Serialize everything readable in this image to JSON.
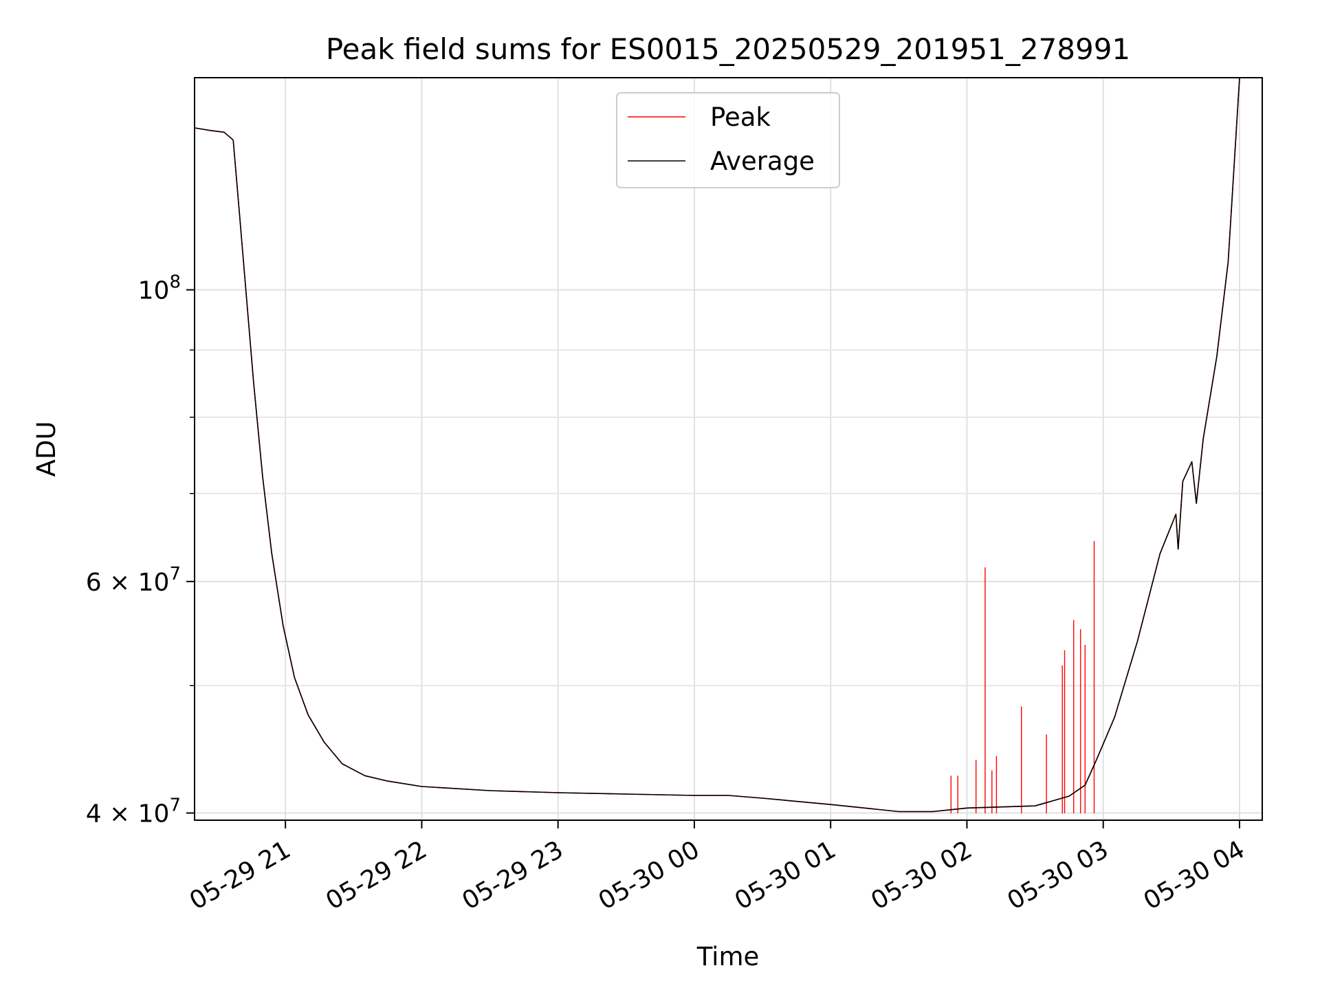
{
  "chart_data": {
    "type": "line",
    "title": "Peak field sums for ES0015_20250529_201951_278991",
    "xlabel": "Time",
    "ylabel": "ADU",
    "yscale": "log",
    "ylim": [
      39500000,
      145000000
    ],
    "xlim": [
      "2025-05-29 20:20",
      "2025-05-30 04:10"
    ],
    "grid": true,
    "legend_position": "upper center",
    "x_ticks": [
      {
        "value": "2025-05-29 21:00",
        "label": "05-29 21"
      },
      {
        "value": "2025-05-29 22:00",
        "label": "05-29 22"
      },
      {
        "value": "2025-05-29 23:00",
        "label": "05-29 23"
      },
      {
        "value": "2025-05-30 00:00",
        "label": "05-30 00"
      },
      {
        "value": "2025-05-30 01:00",
        "label": "05-30 01"
      },
      {
        "value": "2025-05-30 02:00",
        "label": "05-30 02"
      },
      {
        "value": "2025-05-30 03:00",
        "label": "05-30 03"
      },
      {
        "value": "2025-05-30 04:00",
        "label": "05-30 04"
      }
    ],
    "y_major_ticks": [
      {
        "value": 40000000,
        "base": "4 × 10",
        "exp": "7"
      },
      {
        "value": 60000000,
        "base": "6 × 10",
        "exp": "7"
      },
      {
        "value": 100000000,
        "base": "10",
        "exp": "8"
      }
    ],
    "y_minor_ticks": [
      50000000,
      70000000,
      80000000,
      90000000
    ],
    "series": [
      {
        "name": "Peak",
        "color": "#ff0000",
        "points": [
          [
            "2025-05-29 20:20",
            132800000
          ],
          [
            "2025-05-29 20:27",
            132200000
          ],
          [
            "2025-05-29 20:33",
            131800000
          ],
          [
            "2025-05-29 20:37",
            130000000
          ],
          [
            "2025-05-29 20:40",
            113000000
          ],
          [
            "2025-05-29 20:43",
            98000000
          ],
          [
            "2025-05-29 20:46",
            85000000
          ],
          [
            "2025-05-29 20:50",
            72000000
          ],
          [
            "2025-05-29 20:54",
            63000000
          ],
          [
            "2025-05-29 20:59",
            55500000
          ],
          [
            "2025-05-29 21:04",
            50700000
          ],
          [
            "2025-05-29 21:10",
            47500000
          ],
          [
            "2025-05-29 21:17",
            45300000
          ],
          [
            "2025-05-29 21:25",
            43600000
          ],
          [
            "2025-05-29 21:35",
            42700000
          ],
          [
            "2025-05-29 21:45",
            42300000
          ],
          [
            "2025-05-29 22:00",
            41900000
          ],
          [
            "2025-05-29 22:30",
            41600000
          ],
          [
            "2025-05-29 23:00",
            41450000
          ],
          [
            "2025-05-29 23:30",
            41350000
          ],
          [
            "2025-05-30 00:00",
            41250000
          ],
          [
            "2025-05-30 00:15",
            41250000
          ],
          [
            "2025-05-30 00:30",
            41050000
          ],
          [
            "2025-05-30 01:00",
            40600000
          ],
          [
            "2025-05-30 01:30",
            40100000
          ],
          [
            "2025-05-30 01:45",
            40100000
          ],
          [
            "2025-05-30 02:00",
            40350000
          ],
          [
            "2025-05-30 02:30",
            40500000
          ],
          [
            "2025-05-30 02:45",
            41200000
          ],
          [
            "2025-05-30 02:52",
            42000000
          ],
          [
            "2025-05-30 02:57",
            43900000
          ],
          [
            "2025-05-30 03:05",
            47300000
          ],
          [
            "2025-05-30 03:15",
            54000000
          ],
          [
            "2025-05-30 03:25",
            63000000
          ],
          [
            "2025-05-30 03:32",
            67500000
          ],
          [
            "2025-05-30 03:33",
            63500000
          ],
          [
            "2025-05-30 03:35",
            71500000
          ],
          [
            "2025-05-30 03:39",
            74000000
          ],
          [
            "2025-05-30 03:41",
            68800000
          ],
          [
            "2025-05-30 03:44",
            77000000
          ],
          [
            "2025-05-30 03:50",
            89000000
          ],
          [
            "2025-05-30 03:55",
            105000000
          ],
          [
            "2025-05-30 04:00",
            145000000
          ]
        ],
        "spikes": [
          [
            "2025-05-30 01:53",
            42700000
          ],
          [
            "2025-05-30 01:56",
            42700000
          ],
          [
            "2025-05-30 02:04",
            43900000
          ],
          [
            "2025-05-30 02:08",
            61500000
          ],
          [
            "2025-05-30 02:11",
            43100000
          ],
          [
            "2025-05-30 02:13",
            44200000
          ],
          [
            "2025-05-30 02:24",
            48200000
          ],
          [
            "2025-05-30 02:35",
            45900000
          ],
          [
            "2025-05-30 02:42",
            51800000
          ],
          [
            "2025-05-30 02:43",
            53200000
          ],
          [
            "2025-05-30 02:47",
            56100000
          ],
          [
            "2025-05-30 02:50",
            55200000
          ],
          [
            "2025-05-30 02:52",
            53700000
          ],
          [
            "2025-05-30 02:56",
            64400000
          ]
        ]
      },
      {
        "name": "Average",
        "color": "#000000",
        "points": [
          [
            "2025-05-29 20:20",
            132800000
          ],
          [
            "2025-05-29 20:27",
            132200000
          ],
          [
            "2025-05-29 20:33",
            131800000
          ],
          [
            "2025-05-29 20:37",
            130000000
          ],
          [
            "2025-05-29 20:40",
            113000000
          ],
          [
            "2025-05-29 20:43",
            98000000
          ],
          [
            "2025-05-29 20:46",
            85000000
          ],
          [
            "2025-05-29 20:50",
            72000000
          ],
          [
            "2025-05-29 20:54",
            63000000
          ],
          [
            "2025-05-29 20:59",
            55500000
          ],
          [
            "2025-05-29 21:04",
            50700000
          ],
          [
            "2025-05-29 21:10",
            47500000
          ],
          [
            "2025-05-29 21:17",
            45300000
          ],
          [
            "2025-05-29 21:25",
            43600000
          ],
          [
            "2025-05-29 21:35",
            42700000
          ],
          [
            "2025-05-29 21:45",
            42300000
          ],
          [
            "2025-05-29 22:00",
            41900000
          ],
          [
            "2025-05-29 22:30",
            41600000
          ],
          [
            "2025-05-29 23:00",
            41450000
          ],
          [
            "2025-05-29 23:30",
            41350000
          ],
          [
            "2025-05-30 00:00",
            41250000
          ],
          [
            "2025-05-30 00:15",
            41250000
          ],
          [
            "2025-05-30 00:30",
            41050000
          ],
          [
            "2025-05-30 01:00",
            40600000
          ],
          [
            "2025-05-30 01:30",
            40100000
          ],
          [
            "2025-05-30 01:45",
            40100000
          ],
          [
            "2025-05-30 02:00",
            40350000
          ],
          [
            "2025-05-30 02:30",
            40500000
          ],
          [
            "2025-05-30 02:45",
            41200000
          ],
          [
            "2025-05-30 02:52",
            42000000
          ],
          [
            "2025-05-30 02:57",
            43900000
          ],
          [
            "2025-05-30 03:05",
            47300000
          ],
          [
            "2025-05-30 03:15",
            54000000
          ],
          [
            "2025-05-30 03:25",
            63000000
          ],
          [
            "2025-05-30 03:32",
            67500000
          ],
          [
            "2025-05-30 03:33",
            63500000
          ],
          [
            "2025-05-30 03:35",
            71500000
          ],
          [
            "2025-05-30 03:39",
            74000000
          ],
          [
            "2025-05-30 03:41",
            68800000
          ],
          [
            "2025-05-30 03:44",
            77000000
          ],
          [
            "2025-05-30 03:50",
            89000000
          ],
          [
            "2025-05-30 03:55",
            105000000
          ],
          [
            "2025-05-30 04:00",
            145000000
          ]
        ]
      }
    ]
  }
}
